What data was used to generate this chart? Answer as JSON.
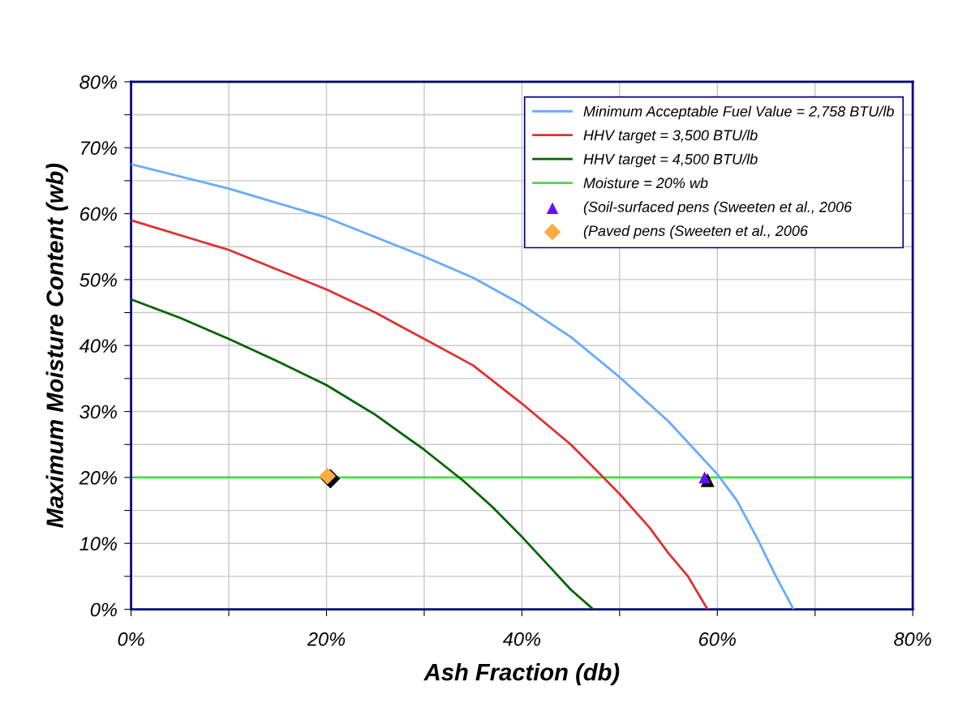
{
  "chart_data": {
    "type": "line",
    "xlabel": "Ash Fraction (db)",
    "ylabel": "Maximum Moisture Content (wb)",
    "xlim": [
      0,
      80
    ],
    "ylim": [
      0,
      80
    ],
    "xticks": [
      {
        "value": 0,
        "label": "0%"
      },
      {
        "value": 10,
        "label": null
      },
      {
        "value": 20,
        "label": "20%"
      },
      {
        "value": 30,
        "label": null
      },
      {
        "value": 40,
        "label": "40%"
      },
      {
        "value": 50,
        "label": null
      },
      {
        "value": 60,
        "label": "60%"
      },
      {
        "value": 70,
        "label": null
      },
      {
        "value": 80,
        "label": "80%"
      }
    ],
    "yticks": [
      {
        "value": 0,
        "label": "0%"
      },
      {
        "value": 5,
        "label": null
      },
      {
        "value": 10,
        "label": "10%"
      },
      {
        "value": 15,
        "label": null
      },
      {
        "value": 20,
        "label": "20%"
      },
      {
        "value": 25,
        "label": null
      },
      {
        "value": 30,
        "label": "30%"
      },
      {
        "value": 35,
        "label": null
      },
      {
        "value": 40,
        "label": "40%"
      },
      {
        "value": 45,
        "label": null
      },
      {
        "value": 50,
        "label": "50%"
      },
      {
        "value": 55,
        "label": null
      },
      {
        "value": 60,
        "label": "60%"
      },
      {
        "value": 65,
        "label": null
      },
      {
        "value": 70,
        "label": "70%"
      },
      {
        "value": 75,
        "label": null
      },
      {
        "value": 80,
        "label": "80%"
      }
    ],
    "grid": true,
    "legend": "top right",
    "series": [
      {
        "name": "Minimum Acceptable Fuel Value = 2,758 BTU/lb",
        "color": "#66aaff",
        "x": [
          0,
          10,
          20,
          30,
          35,
          40,
          45,
          50,
          55,
          60,
          62,
          64,
          66,
          67.8
        ],
        "values": [
          67.5,
          63.8,
          59.4,
          53.5,
          50.3,
          46.2,
          41.3,
          35.2,
          28.5,
          20.5,
          16.5,
          11,
          5,
          0
        ]
      },
      {
        "name": "HHV target = 3,500 BTU/lb",
        "color": "#e03030",
        "x": [
          0,
          10,
          20,
          25,
          30,
          35,
          40,
          45,
          48,
          50,
          53,
          55,
          57,
          59
        ],
        "values": [
          59,
          54.5,
          48.5,
          45,
          41,
          37,
          31.2,
          25,
          20.5,
          17.5,
          12.5,
          8.5,
          5,
          0
        ]
      },
      {
        "name": "HHV target = 4,500 BTU/lb",
        "color": "#006400",
        "x": [
          0,
          5,
          10,
          15,
          20,
          25,
          30,
          34,
          37,
          40,
          43,
          45,
          47.3
        ],
        "values": [
          47,
          44.2,
          41,
          37.6,
          34,
          29.5,
          24.2,
          19.5,
          15.5,
          11,
          6.2,
          3,
          0
        ]
      },
      {
        "type": "scatter",
        "color": "#000000",
        "marker": "triangle",
        "x": [
          59.0
        ],
        "values": [
          19.6
        ]
      },
      {
        "type": "scatter",
        "color": "#000000",
        "marker": "diamond",
        "x": [
          20.4
        ],
        "values": [
          19.8
        ]
      },
      {
        "type": "scatter",
        "name": "(Soil-surfaced pens (Sweeten et al., 2006",
        "color": "#6a0dff",
        "marker": "triangle",
        "x": [
          58.7
        ],
        "values": [
          20.0
        ]
      },
      {
        "type": "scatter",
        "name": "(Paved pens (Sweeten et al., 2006",
        "color": "#ffaa44",
        "marker": "diamond",
        "x": [
          20.1
        ],
        "values": [
          20.2
        ]
      }
    ],
    "ref_lines": [
      {
        "axis": "y",
        "value": 20,
        "label": "Moisture = 20% wb",
        "color": "#44dd44"
      }
    ]
  }
}
